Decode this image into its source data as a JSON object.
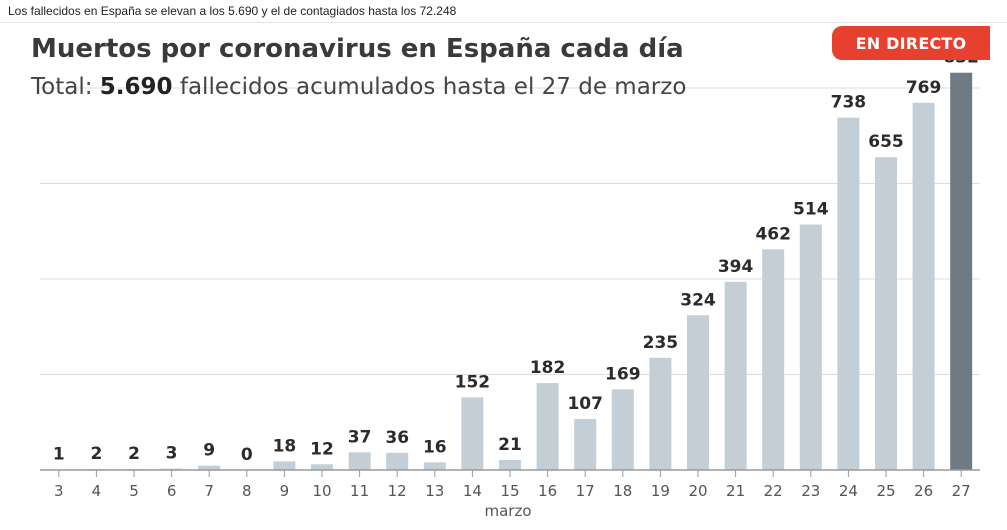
{
  "caption": "Los fallecidos en España se elevan a los 5.690 y el de contagiados hasta los 72.248",
  "badge": "EN DIRECTO",
  "colors": {
    "bar": "#c3ced6",
    "bar_highlight": "#6f7a82",
    "badge": "#e8402f",
    "grid": "#dcdcdc"
  },
  "chart_data": {
    "type": "bar",
    "title": "Muertos por coronavirus en España cada día",
    "subtitle_prefix": "Total: ",
    "subtitle_bold": "5.690",
    "subtitle_suffix": " fallecidos acumulados hasta el 27 de marzo",
    "xlabel": "marzo",
    "ylabel": "",
    "categories": [
      "3",
      "4",
      "5",
      "6",
      "7",
      "8",
      "9",
      "10",
      "11",
      "12",
      "13",
      "14",
      "15",
      "16",
      "17",
      "18",
      "19",
      "20",
      "21",
      "22",
      "23",
      "24",
      "25",
      "26",
      "27"
    ],
    "values": [
      1,
      2,
      2,
      3,
      9,
      0,
      18,
      12,
      37,
      36,
      16,
      152,
      21,
      182,
      107,
      169,
      235,
      324,
      394,
      462,
      514,
      738,
      655,
      769,
      832
    ],
    "ylim": [
      0,
      800
    ],
    "grid": true,
    "highlight_last": true
  }
}
